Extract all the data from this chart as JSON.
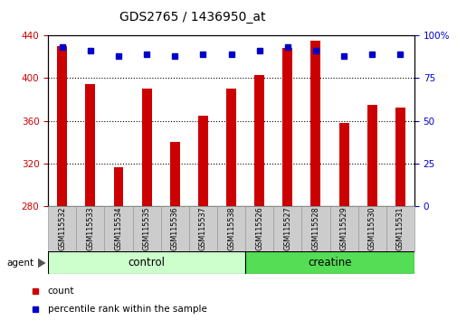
{
  "title": "GDS2765 / 1436950_at",
  "categories": [
    "GSM115532",
    "GSM115533",
    "GSM115534",
    "GSM115535",
    "GSM115536",
    "GSM115537",
    "GSM115538",
    "GSM115526",
    "GSM115527",
    "GSM115528",
    "GSM115529",
    "GSM115530",
    "GSM115531"
  ],
  "bar_values": [
    430,
    394,
    317,
    390,
    340,
    365,
    390,
    403,
    428,
    435,
    358,
    375,
    372
  ],
  "bar_bottom": 280,
  "percentile_values": [
    93,
    91,
    88,
    89,
    88,
    89,
    89,
    91,
    93,
    91,
    88,
    89,
    89
  ],
  "bar_color": "#cc0000",
  "dot_color": "#0000cc",
  "ylim_left": [
    280,
    440
  ],
  "ylim_right": [
    0,
    100
  ],
  "yticks_left": [
    280,
    320,
    360,
    400,
    440
  ],
  "yticks_right": [
    0,
    25,
    50,
    75,
    100
  ],
  "legend_items": [
    "count",
    "percentile rank within the sample"
  ],
  "background_color": "#ffffff",
  "plot_bg_color": "#ffffff",
  "tick_label_color_left": "#cc0000",
  "tick_label_color_right": "#0000cc",
  "xticklabel_bg": "#cccccc",
  "control_color": "#ccffcc",
  "creatine_color": "#55dd55",
  "n_control": 7,
  "n_creatine": 6
}
